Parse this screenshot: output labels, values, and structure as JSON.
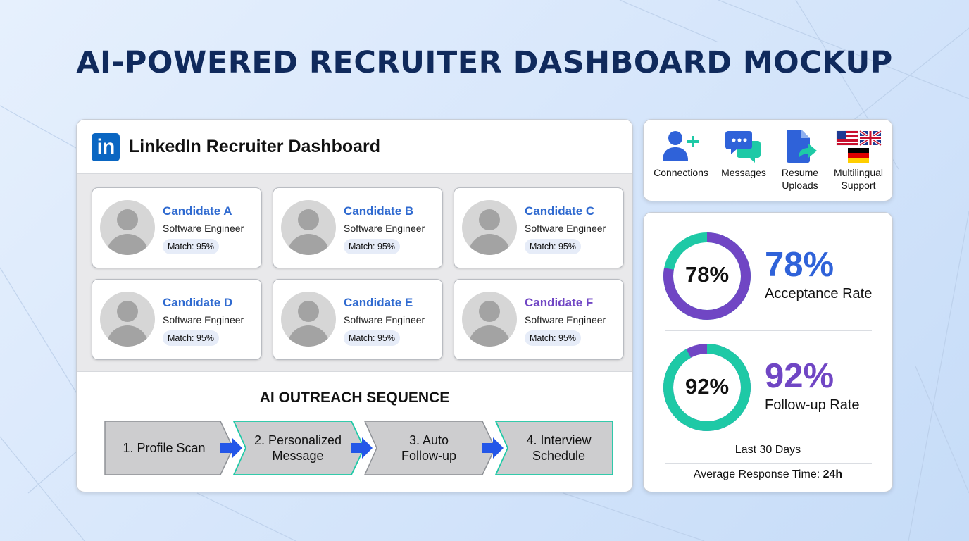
{
  "page_title": "AI-POWERED RECRUITER DASHBOARD MOCKUP",
  "dashboard": {
    "logo_text": "in",
    "title": "LinkedIn Recruiter Dashboard",
    "candidates": [
      {
        "name": "Candidate A",
        "role": "Software Engineer",
        "match": "Match: 95%"
      },
      {
        "name": "Candidate B",
        "role": "Software Engineer",
        "match": "Match: 95%"
      },
      {
        "name": "Candidate C",
        "role": "Software Engineer",
        "match": "Match: 95%"
      },
      {
        "name": "Candidate D",
        "role": "Software Engineer",
        "match": "Match: 95%"
      },
      {
        "name": "Candidate E",
        "role": "Software Engineer",
        "match": "Match: 95%"
      },
      {
        "name": "Candidate F",
        "role": "Software Engineer",
        "match": "Match: 95%"
      }
    ],
    "sequence_title": "AI OUTREACH SEQUENCE",
    "sequence_steps": [
      "1. Profile Scan",
      "2. Personalized\nMessage",
      "3. Auto\nFollow-up",
      "4. Interview\nSchedule"
    ]
  },
  "features": [
    {
      "icon": "add-user-icon",
      "label": "Connections"
    },
    {
      "icon": "chat-bubbles-icon",
      "label": "Messages"
    },
    {
      "icon": "document-upload-icon",
      "label": "Resume\nUploads"
    },
    {
      "icon": "flags-icon",
      "label": "Multilingual\nSupport"
    }
  ],
  "stats": {
    "acceptance": {
      "value": 78,
      "ring_label": "78%",
      "big_label": "78%",
      "label": "Acceptance Rate",
      "color": "#2f62d9"
    },
    "followup": {
      "value": 92,
      "ring_label": "92%",
      "big_label": "92%",
      "label": "Follow-up Rate",
      "color": "#7046c4"
    },
    "period": "Last 30 Days",
    "avg_label": "Average Response Time:",
    "avg_value": "24h"
  },
  "colors": {
    "accent_blue": "#2f6ad0",
    "accent_purple": "#7046c4",
    "accent_teal": "#1ec9a6",
    "linkedin_blue": "#0a66c2",
    "title_navy": "#102a5c"
  }
}
